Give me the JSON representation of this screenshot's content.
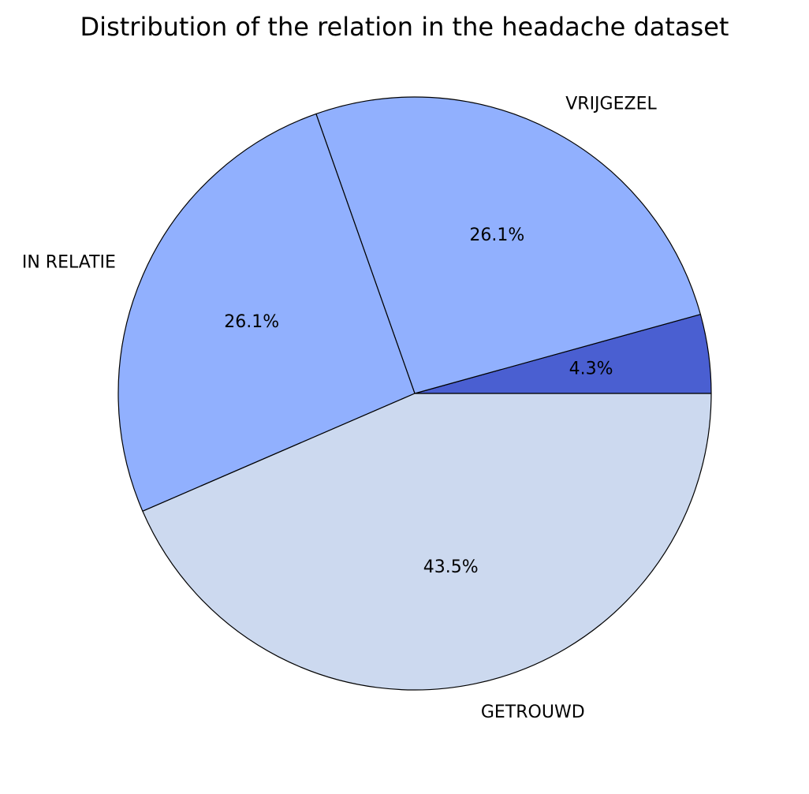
{
  "chart_data": {
    "type": "pie",
    "title": "Distribution of the relation in the headache dataset",
    "start_angle_deg": 0,
    "direction": "counterclockwise",
    "edge_color": "#000000",
    "slices": [
      {
        "label": "",
        "value": 4.3,
        "pct_label": "4.3%",
        "color": "#4a5fd1"
      },
      {
        "label": "VRIJGEZEL",
        "value": 26.1,
        "pct_label": "26.1%",
        "color": "#91b0fe"
      },
      {
        "label": "IN RELATIE",
        "value": 26.1,
        "pct_label": "26.1%",
        "color": "#91b0fe"
      },
      {
        "label": "GETROUWD",
        "value": 43.5,
        "pct_label": "43.5%",
        "color": "#ccd9ef"
      }
    ]
  }
}
